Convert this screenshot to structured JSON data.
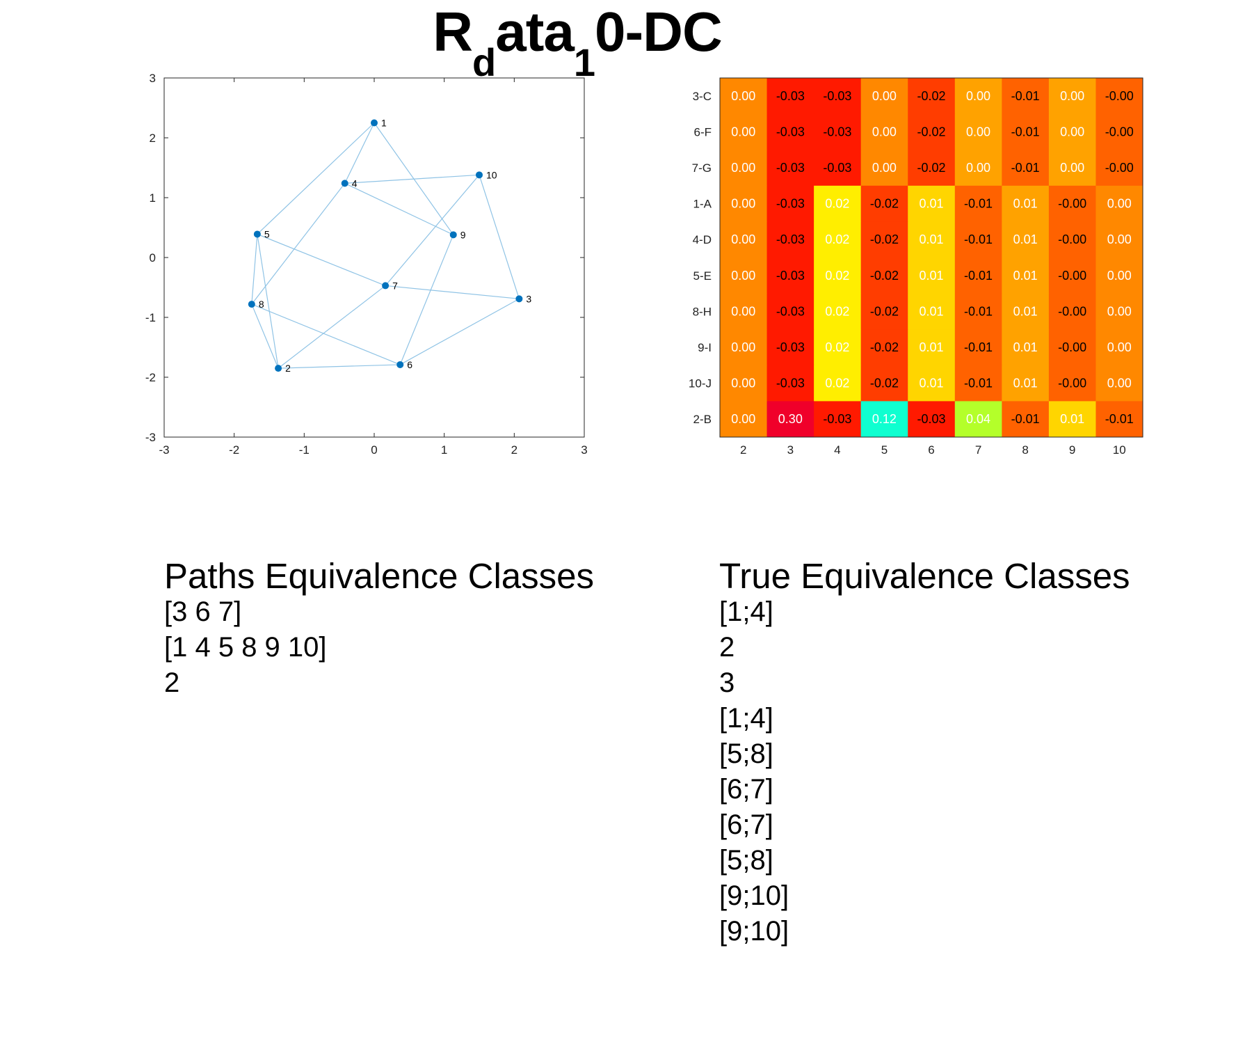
{
  "title": {
    "main": "R",
    "sub1": "d",
    "mid": "ata",
    "sub2": "1",
    "end": "0-DC"
  },
  "chart_data": [
    {
      "type": "scatter",
      "title": "",
      "xlabel": "",
      "ylabel": "",
      "xlim": [
        -3,
        3
      ],
      "ylim": [
        -3,
        3
      ],
      "xticks": [
        "-3",
        "-2",
        "-1",
        "0",
        "1",
        "2",
        "3"
      ],
      "yticks": [
        "-3",
        "-2",
        "-1",
        "0",
        "1",
        "2",
        "3"
      ],
      "grid": false,
      "point_color": "#0072bd",
      "edge_color": "#8fc3e5",
      "nodes": [
        {
          "label": "1",
          "x": 0.0,
          "y": 2.25
        },
        {
          "label": "2",
          "x": -1.37,
          "y": -1.85
        },
        {
          "label": "3",
          "x": 2.07,
          "y": -0.69
        },
        {
          "label": "4",
          "x": -0.42,
          "y": 1.24
        },
        {
          "label": "5",
          "x": -1.67,
          "y": 0.39
        },
        {
          "label": "6",
          "x": 0.37,
          "y": -1.79
        },
        {
          "label": "7",
          "x": 0.16,
          "y": -0.47
        },
        {
          "label": "8",
          "x": -1.75,
          "y": -0.78
        },
        {
          "label": "9",
          "x": 1.13,
          "y": 0.38
        },
        {
          "label": "10",
          "x": 1.5,
          "y": 1.38
        }
      ],
      "edges": [
        [
          "1",
          "5"
        ],
        [
          "1",
          "4"
        ],
        [
          "1",
          "9"
        ],
        [
          "4",
          "10"
        ],
        [
          "4",
          "9"
        ],
        [
          "4",
          "8"
        ],
        [
          "10",
          "7"
        ],
        [
          "10",
          "3"
        ],
        [
          "5",
          "8"
        ],
        [
          "5",
          "2"
        ],
        [
          "5",
          "7"
        ],
        [
          "8",
          "2"
        ],
        [
          "8",
          "6"
        ],
        [
          "7",
          "2"
        ],
        [
          "7",
          "3"
        ],
        [
          "9",
          "6"
        ],
        [
          "6",
          "2"
        ],
        [
          "6",
          "3"
        ]
      ]
    },
    {
      "type": "heatmap",
      "title": "",
      "columns": [
        "2",
        "3",
        "4",
        "5",
        "6",
        "7",
        "8",
        "9",
        "10"
      ],
      "rows": [
        "3-C",
        "6-F",
        "7-G",
        "1-A",
        "4-D",
        "5-E",
        "8-H",
        "9-I",
        "10-J",
        "2-B"
      ],
      "values": [
        [
          "0.00",
          "-0.03",
          "-0.03",
          "0.00",
          "-0.02",
          "0.00",
          "-0.01",
          "0.00",
          "-0.00"
        ],
        [
          "0.00",
          "-0.03",
          "-0.03",
          "0.00",
          "-0.02",
          "0.00",
          "-0.01",
          "0.00",
          "-0.00"
        ],
        [
          "0.00",
          "-0.03",
          "-0.03",
          "0.00",
          "-0.02",
          "0.00",
          "-0.01",
          "0.00",
          "-0.00"
        ],
        [
          "0.00",
          "-0.03",
          "0.02",
          "-0.02",
          "0.01",
          "-0.01",
          "0.01",
          "-0.00",
          "0.00"
        ],
        [
          "0.00",
          "-0.03",
          "0.02",
          "-0.02",
          "0.01",
          "-0.01",
          "0.01",
          "-0.00",
          "0.00"
        ],
        [
          "0.00",
          "-0.03",
          "0.02",
          "-0.02",
          "0.01",
          "-0.01",
          "0.01",
          "-0.00",
          "0.00"
        ],
        [
          "0.00",
          "-0.03",
          "0.02",
          "-0.02",
          "0.01",
          "-0.01",
          "0.01",
          "-0.00",
          "0.00"
        ],
        [
          "0.00",
          "-0.03",
          "0.02",
          "-0.02",
          "0.01",
          "-0.01",
          "0.01",
          "-0.00",
          "0.00"
        ],
        [
          "0.00",
          "-0.03",
          "0.02",
          "-0.02",
          "0.01",
          "-0.01",
          "0.01",
          "-0.00",
          "0.00"
        ],
        [
          "0.00",
          "0.30",
          "-0.03",
          "0.12",
          "-0.03",
          "0.04",
          "-0.01",
          "0.01",
          "-0.01"
        ]
      ],
      "colors": [
        [
          "#ff8800",
          "#ff1a00",
          "#ff1a00",
          "#ff8800",
          "#ff3d00",
          "#ffa200",
          "#ff6200",
          "#ffa200",
          "#ff6200"
        ],
        [
          "#ff8800",
          "#ff1a00",
          "#ff1a00",
          "#ff8800",
          "#ff3d00",
          "#ffa200",
          "#ff6200",
          "#ffa200",
          "#ff6200"
        ],
        [
          "#ff8800",
          "#ff1a00",
          "#ff1a00",
          "#ff8800",
          "#ff3d00",
          "#ffa200",
          "#ff6200",
          "#ffa200",
          "#ff6200"
        ],
        [
          "#ff8800",
          "#ff1a00",
          "#ffee00",
          "#ff3d00",
          "#ffd500",
          "#ff6200",
          "#ffa200",
          "#ff6200",
          "#ff8800"
        ],
        [
          "#ff8800",
          "#ff1a00",
          "#ffee00",
          "#ff3d00",
          "#ffd500",
          "#ff6200",
          "#ffa200",
          "#ff6200",
          "#ff8800"
        ],
        [
          "#ff8800",
          "#ff1a00",
          "#ffee00",
          "#ff3d00",
          "#ffd500",
          "#ff6200",
          "#ffa200",
          "#ff6200",
          "#ff8800"
        ],
        [
          "#ff8800",
          "#ff1a00",
          "#ffee00",
          "#ff3d00",
          "#ffd500",
          "#ff6200",
          "#ffa200",
          "#ff6200",
          "#ff8800"
        ],
        [
          "#ff8800",
          "#ff1a00",
          "#ffee00",
          "#ff3d00",
          "#ffd500",
          "#ff6200",
          "#ffa200",
          "#ff6200",
          "#ff8800"
        ],
        [
          "#ff8800",
          "#ff1a00",
          "#ffee00",
          "#ff3d00",
          "#ffd500",
          "#ff6200",
          "#ffa200",
          "#ff6200",
          "#ff8800"
        ],
        [
          "#ff8800",
          "#f0002a",
          "#ff1a00",
          "#0fffd0",
          "#ff1a00",
          "#b4ff2a",
          "#ff6200",
          "#ffd500",
          "#ff6200"
        ]
      ],
      "text_colors": [
        [
          "#ffffff",
          "#000000",
          "#000000",
          "#ffffff",
          "#000000",
          "#ffffff",
          "#000000",
          "#ffffff",
          "#000000"
        ],
        [
          "#ffffff",
          "#000000",
          "#000000",
          "#ffffff",
          "#000000",
          "#ffffff",
          "#000000",
          "#ffffff",
          "#000000"
        ],
        [
          "#ffffff",
          "#000000",
          "#000000",
          "#ffffff",
          "#000000",
          "#ffffff",
          "#000000",
          "#ffffff",
          "#000000"
        ],
        [
          "#ffffff",
          "#000000",
          "#ffffff",
          "#000000",
          "#ffffff",
          "#000000",
          "#ffffff",
          "#000000",
          "#ffffff"
        ],
        [
          "#ffffff",
          "#000000",
          "#ffffff",
          "#000000",
          "#ffffff",
          "#000000",
          "#ffffff",
          "#000000",
          "#ffffff"
        ],
        [
          "#ffffff",
          "#000000",
          "#ffffff",
          "#000000",
          "#ffffff",
          "#000000",
          "#ffffff",
          "#000000",
          "#ffffff"
        ],
        [
          "#ffffff",
          "#000000",
          "#ffffff",
          "#000000",
          "#ffffff",
          "#000000",
          "#ffffff",
          "#000000",
          "#ffffff"
        ],
        [
          "#ffffff",
          "#000000",
          "#ffffff",
          "#000000",
          "#ffffff",
          "#000000",
          "#ffffff",
          "#000000",
          "#ffffff"
        ],
        [
          "#ffffff",
          "#000000",
          "#ffffff",
          "#000000",
          "#ffffff",
          "#000000",
          "#ffffff",
          "#000000",
          "#ffffff"
        ],
        [
          "#ffffff",
          "#ffffff",
          "#000000",
          "#ffffff",
          "#000000",
          "#ffffff",
          "#000000",
          "#ffffff",
          "#000000"
        ]
      ]
    }
  ],
  "paths_classes": {
    "heading": "Paths Equivalence Classes",
    "lines": [
      "[3 6 7]",
      "[1 4 5 8 9 10]",
      "2"
    ]
  },
  "true_classes": {
    "heading": "True Equivalence Classes",
    "lines": [
      "[1;4]",
      "2",
      "3",
      "[1;4]",
      "[5;8]",
      "[6;7]",
      "[6;7]",
      "[5;8]",
      "[9;10]",
      "[9;10]"
    ]
  }
}
